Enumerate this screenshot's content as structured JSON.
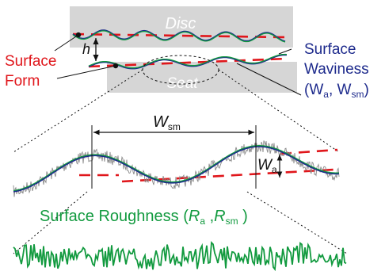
{
  "labels": {
    "disc": "Disc",
    "seat": "Seat",
    "h": "h",
    "surface_form_line1": "Surface",
    "surface_form_line2": "Form",
    "waviness_line1": "Surface",
    "waviness_line2": "Waviness",
    "waviness_line3_a": "(W",
    "waviness_line3_sub1": "a",
    "waviness_line3_b": ", W",
    "waviness_line3_sub2": "sm",
    "waviness_line3_c": ")",
    "wsm_main": "W",
    "wsm_sub": "sm",
    "wa_main": "W",
    "wa_sub": "a",
    "roughness_prefix": "Surface Roughness (",
    "roughness_ra": "R",
    "roughness_ra_sub": "a",
    "roughness_sep": " ,",
    "roughness_rsm": "R",
    "roughness_rsm_sub": "sm",
    "roughness_suffix": " )"
  },
  "colors": {
    "form_red": "#e0161b",
    "waviness_navy": "#1d2a8c",
    "roughness_green": "#129a3f",
    "block_gray": "#d6d6d6",
    "noise_gray": "#8a8a8a",
    "line_black": "#111111",
    "label_white": "#ffffff"
  }
}
